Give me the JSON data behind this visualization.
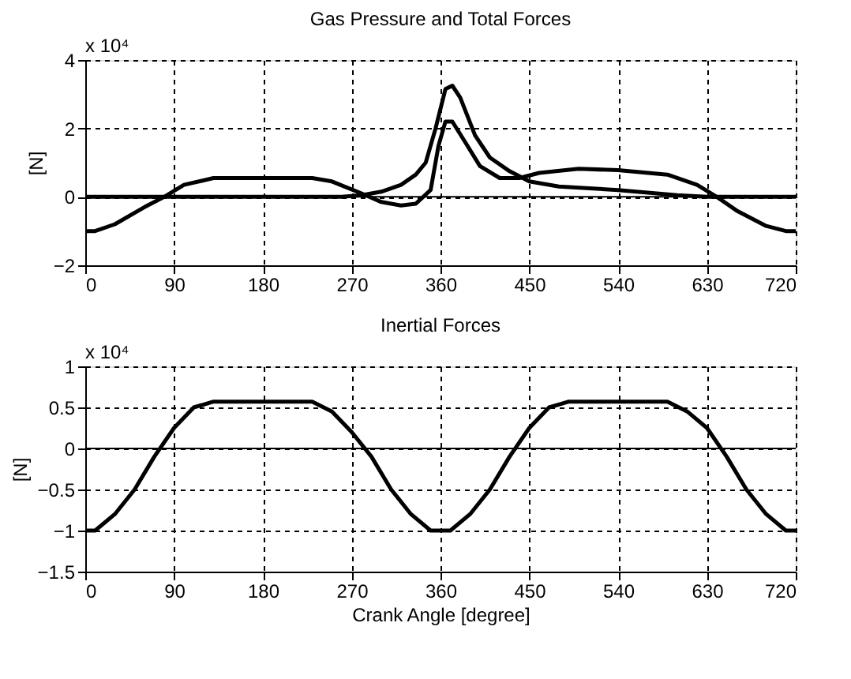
{
  "chart_data": [
    {
      "type": "line",
      "title": "Gas Pressure and Total Forces",
      "ylabel": "[N]",
      "annotations": [
        "x 10⁴"
      ],
      "xlim": [
        0,
        720
      ],
      "xticks": [
        0,
        90,
        180,
        270,
        360,
        450,
        540,
        630,
        720
      ],
      "ylim": [
        -2,
        4
      ],
      "yticks": [
        -2,
        0,
        2,
        4
      ],
      "grid": true,
      "line_style": "solid",
      "ref_lines": [
        {
          "axis": "y",
          "value": 0,
          "color": "#000000"
        }
      ],
      "series": [
        {
          "color": "#000000",
          "x": [
            0,
            100,
            200,
            260,
            280,
            300,
            320,
            335,
            345,
            355,
            365,
            372,
            380,
            395,
            410,
            430,
            450,
            480,
            540,
            600,
            630,
            720
          ],
          "values": [
            0,
            0,
            0,
            0,
            0.05,
            0.15,
            0.35,
            0.65,
            1.0,
            2.0,
            3.15,
            3.25,
            2.9,
            1.8,
            1.15,
            0.75,
            0.45,
            0.3,
            0.2,
            0.05,
            0,
            0
          ]
        },
        {
          "color": "#000000",
          "x": [
            0,
            10,
            30,
            60,
            80,
            100,
            130,
            230,
            250,
            280,
            300,
            320,
            335,
            350,
            358,
            365,
            372,
            385,
            400,
            420,
            440,
            460,
            500,
            540,
            590,
            620,
            640,
            660,
            690,
            710,
            720
          ],
          "values": [
            -1,
            -1,
            -0.8,
            -0.3,
            0,
            0.35,
            0.55,
            0.55,
            0.45,
            0.1,
            -0.15,
            -0.25,
            -0.2,
            0.2,
            1.5,
            2.2,
            2.2,
            1.6,
            0.9,
            0.55,
            0.55,
            0.7,
            0.82,
            0.78,
            0.65,
            0.35,
            0,
            -0.4,
            -0.85,
            -1,
            -1
          ]
        }
      ]
    },
    {
      "type": "line",
      "title": "Inertial Forces",
      "xlabel": "Crank Angle [degree]",
      "ylabel": "[N]",
      "annotations": [
        "x 10⁴"
      ],
      "xlim": [
        0,
        720
      ],
      "xticks": [
        0,
        90,
        180,
        270,
        360,
        450,
        540,
        630,
        720
      ],
      "ylim": [
        -1.5,
        1
      ],
      "yticks": [
        -1.5,
        -1,
        -0.5,
        0,
        0.5,
        1
      ],
      "grid": true,
      "line_style": "solid",
      "ref_lines": [
        {
          "axis": "y",
          "value": 0,
          "color": "#000000"
        }
      ],
      "series": [
        {
          "color": "#000000",
          "x": [
            0,
            10,
            30,
            50,
            70,
            90,
            110,
            130,
            230,
            250,
            270,
            290,
            310,
            330,
            350,
            370,
            390,
            410,
            430,
            450,
            470,
            490,
            590,
            610,
            630,
            650,
            670,
            690,
            710,
            720
          ],
          "values": [
            -1,
            -1,
            -0.8,
            -0.5,
            -0.1,
            0.25,
            0.5,
            0.57,
            0.57,
            0.45,
            0.2,
            -0.1,
            -0.5,
            -0.8,
            -1,
            -1,
            -0.8,
            -0.5,
            -0.1,
            0.25,
            0.5,
            0.57,
            0.57,
            0.45,
            0.25,
            -0.1,
            -0.5,
            -0.8,
            -1,
            -1
          ]
        }
      ]
    }
  ]
}
